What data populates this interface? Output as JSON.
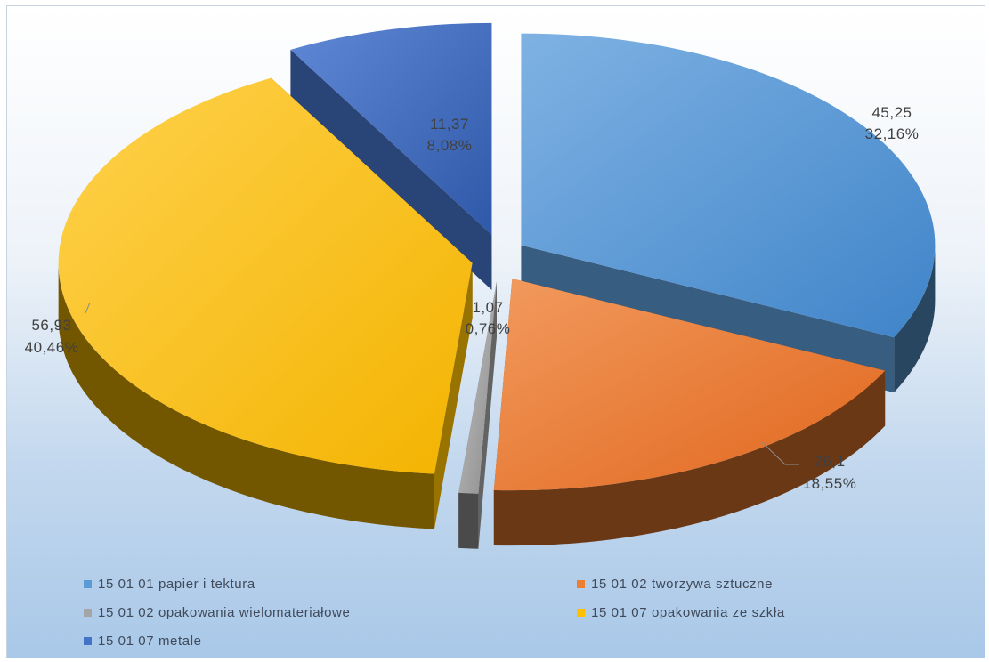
{
  "chart_data": {
    "type": "pie",
    "variant": "3d-exploded",
    "title": "",
    "legend_position": "bottom",
    "slices": [
      {
        "name": "15 01 01 papier i tektura",
        "value": 45.25,
        "value_label": "45,25",
        "percent_label": "32,16%",
        "color": "#5b9bd5"
      },
      {
        "name": "15 01 02 tworzywa sztuczne",
        "value": 26.1,
        "value_label": "26,1",
        "percent_label": "18,55%",
        "color": "#ed7d31"
      },
      {
        "name": "15 01 02 opakowania wielomateriałowe",
        "value": 1.07,
        "value_label": "1,07",
        "percent_label": "0,76%",
        "color": "#a5a5a5"
      },
      {
        "name": "15 01 07 opakowania ze szkła",
        "value": 56.93,
        "value_label": "56,93",
        "percent_label": "40,46%",
        "color": "#ffc000"
      },
      {
        "name": "15 01 07 metale",
        "value": 11.37,
        "value_label": "11,37",
        "percent_label": "8,08%",
        "color": "#4472c4"
      }
    ]
  }
}
